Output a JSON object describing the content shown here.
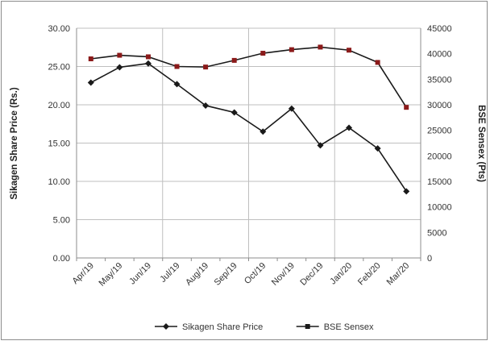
{
  "chart_data": {
    "type": "line",
    "categories": [
      "Apr/19",
      "May/19",
      "Jun/19",
      "Jul/19",
      "Aug/19",
      "Sep/19",
      "Oct/19",
      "Nov/19",
      "Dec/19",
      "Jan/20",
      "Feb/20",
      "Mar/20"
    ],
    "series": [
      {
        "name": "Sikagen Share Price",
        "axis": "left",
        "color": "#1a1a1a",
        "marker": "diamond",
        "values": [
          22.9,
          24.9,
          25.4,
          22.7,
          19.9,
          19.0,
          16.5,
          19.5,
          14.7,
          17.0,
          14.3,
          8.7
        ]
      },
      {
        "name": "BSE Sensex",
        "axis": "right",
        "color": "#1a1a1a",
        "marker": "square",
        "marker_fill": "#8b1a1a",
        "values": [
          39000,
          39700,
          39400,
          37500,
          37400,
          38700,
          40100,
          40800,
          41300,
          40700,
          38300,
          29500
        ]
      }
    ],
    "y_left": {
      "label": "Sikagen Share Price (Rs.)",
      "ylim": [
        0,
        30
      ],
      "ticks": [
        "0.00",
        "5.00",
        "10.00",
        "15.00",
        "20.00",
        "25.00",
        "30.00"
      ]
    },
    "y_right": {
      "label": "BSE Sensex (Pts)",
      "ylim": [
        0,
        45000
      ],
      "ticks": [
        "0",
        "5000",
        "10000",
        "15000",
        "20000",
        "25000",
        "30000",
        "35000",
        "40000",
        "45000"
      ]
    },
    "grid": "horizontal-and-vertical",
    "legend_position": "bottom"
  }
}
